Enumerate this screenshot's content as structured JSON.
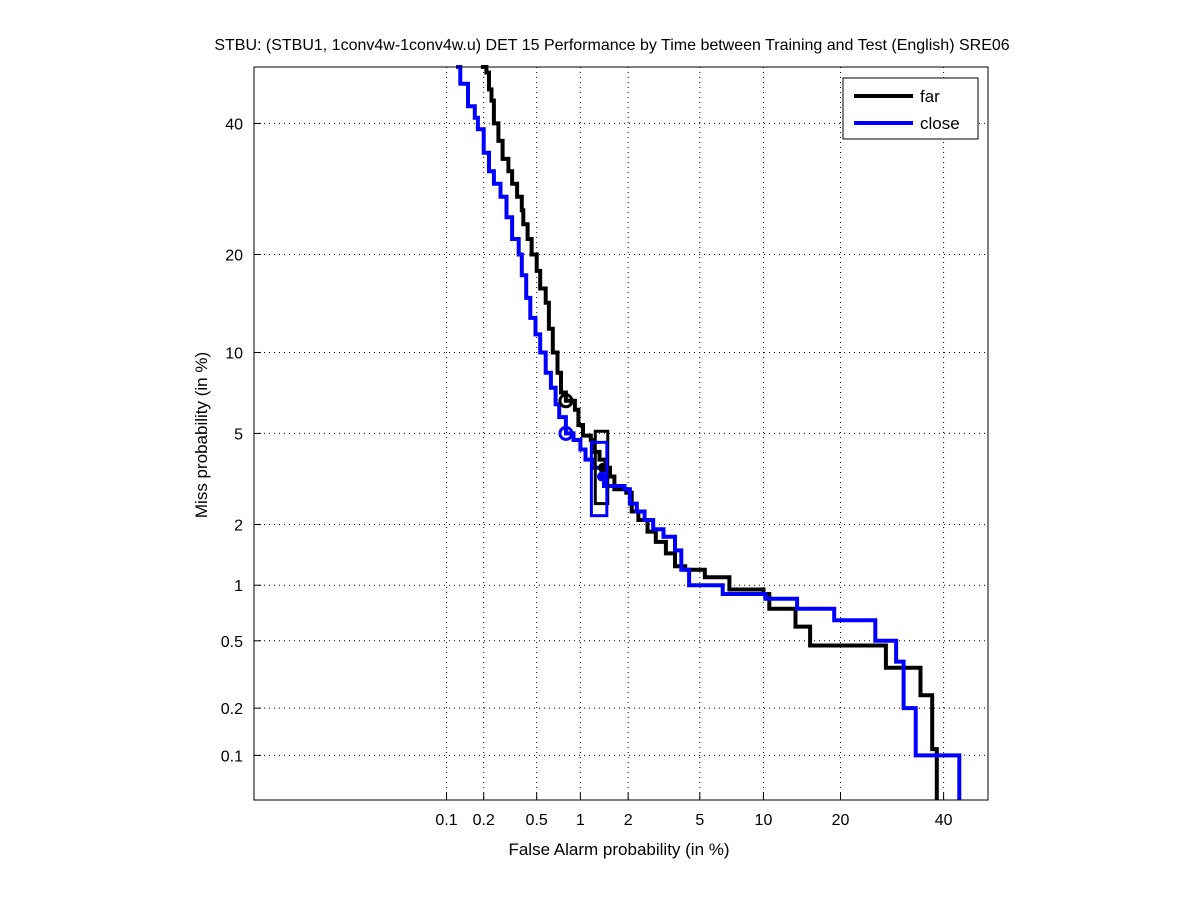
{
  "chart_data": {
    "type": "line",
    "subtype": "DET curve (normal-deviate scale)",
    "title": "STBU: (STBU1, 1conv4w-1conv4w.u) DET 15 Performance by Time between Training and Test (English) SRE06",
    "xlabel": "False Alarm probability (in %)",
    "ylabel": "Miss probability (in %)",
    "x_ticks": [
      0.1,
      0.2,
      0.5,
      1,
      2,
      5,
      10,
      20,
      40
    ],
    "x_tick_labels": [
      "0.1",
      "0.2",
      "0.5",
      "1",
      "2",
      "5",
      "10",
      "20",
      "40"
    ],
    "y_ticks": [
      0.1,
      0.2,
      0.5,
      1,
      2,
      5,
      10,
      20,
      40
    ],
    "y_tick_labels": [
      "0.1",
      "0.2",
      "0.5",
      "1",
      "2",
      "5",
      "10",
      "20",
      "40"
    ],
    "xlim": [
      0.0014,
      50
    ],
    "ylim": [
      0.05,
      50
    ],
    "grid": true,
    "legend_position": "top-right",
    "series": [
      {
        "name": "far",
        "color": "#000000",
        "points": [
          [
            0.19,
            50
          ],
          [
            0.21,
            49
          ],
          [
            0.22,
            46
          ],
          [
            0.23,
            44
          ],
          [
            0.24,
            40
          ],
          [
            0.26,
            37
          ],
          [
            0.28,
            34
          ],
          [
            0.31,
            32
          ],
          [
            0.33,
            30
          ],
          [
            0.36,
            28
          ],
          [
            0.39,
            26
          ],
          [
            0.4,
            24
          ],
          [
            0.43,
            22
          ],
          [
            0.46,
            20
          ],
          [
            0.5,
            18
          ],
          [
            0.53,
            16
          ],
          [
            0.58,
            14.5
          ],
          [
            0.61,
            12
          ],
          [
            0.65,
            10
          ],
          [
            0.7,
            8.5
          ],
          [
            0.74,
            7.2
          ],
          [
            0.8,
            6.7
          ],
          [
            0.92,
            6.2
          ],
          [
            0.97,
            5.4
          ],
          [
            1.04,
            4.9
          ],
          [
            1.17,
            4.7
          ],
          [
            1.2,
            4.2
          ],
          [
            1.33,
            3.9
          ],
          [
            1.45,
            3.6
          ],
          [
            1.55,
            3.3
          ],
          [
            1.65,
            2.9
          ],
          [
            1.95,
            2.8
          ],
          [
            2.1,
            2.3
          ],
          [
            2.3,
            2.1
          ],
          [
            2.6,
            1.85
          ],
          [
            2.9,
            1.65
          ],
          [
            3.3,
            1.45
          ],
          [
            3.7,
            1.25
          ],
          [
            4.2,
            1.2
          ],
          [
            5.3,
            1.1
          ],
          [
            7.0,
            0.95
          ],
          [
            10.0,
            0.9
          ],
          [
            10.6,
            0.75
          ],
          [
            13.6,
            0.6
          ],
          [
            15.5,
            0.47
          ],
          [
            28.0,
            0.35
          ],
          [
            35.0,
            0.24
          ],
          [
            37.5,
            0.11
          ],
          [
            38.5,
            0.05
          ]
        ]
      },
      {
        "name": "close",
        "color": "#0000ff",
        "points": [
          [
            0.12,
            50
          ],
          [
            0.13,
            47
          ],
          [
            0.15,
            43
          ],
          [
            0.17,
            41
          ],
          [
            0.18,
            39
          ],
          [
            0.2,
            35
          ],
          [
            0.22,
            32
          ],
          [
            0.24,
            30
          ],
          [
            0.27,
            28
          ],
          [
            0.3,
            25
          ],
          [
            0.33,
            22
          ],
          [
            0.37,
            20
          ],
          [
            0.39,
            17.5
          ],
          [
            0.42,
            15
          ],
          [
            0.45,
            13
          ],
          [
            0.49,
            11.5
          ],
          [
            0.53,
            10
          ],
          [
            0.58,
            8.5
          ],
          [
            0.63,
            7.5
          ],
          [
            0.68,
            6.5
          ],
          [
            0.72,
            5.8
          ],
          [
            0.8,
            5.0
          ],
          [
            0.9,
            4.7
          ],
          [
            1.0,
            4.3
          ],
          [
            1.08,
            3.9
          ],
          [
            1.2,
            3.6
          ],
          [
            1.37,
            3.3
          ],
          [
            1.42,
            3.0
          ],
          [
            1.9,
            2.9
          ],
          [
            2.05,
            2.5
          ],
          [
            2.25,
            2.3
          ],
          [
            2.5,
            2.1
          ],
          [
            2.8,
            1.9
          ],
          [
            3.2,
            1.75
          ],
          [
            3.7,
            1.5
          ],
          [
            4.0,
            1.2
          ],
          [
            4.4,
            1.0
          ],
          [
            6.5,
            0.9
          ],
          [
            10.2,
            0.85
          ],
          [
            13.8,
            0.75
          ],
          [
            19.0,
            0.65
          ],
          [
            26.0,
            0.5
          ],
          [
            30.0,
            0.38
          ],
          [
            31.5,
            0.2
          ],
          [
            34.0,
            0.1
          ],
          [
            43.0,
            0.1
          ],
          [
            43.5,
            0.05
          ]
        ]
      }
    ],
    "markers": [
      {
        "series": "far",
        "type": "circle",
        "label": "min DCF point",
        "fa": 0.8,
        "miss": 6.7
      },
      {
        "series": "close",
        "type": "circle",
        "label": "min DCF point",
        "fa": 0.8,
        "miss": 5.0
      },
      {
        "series": "far",
        "type": "confidence-box",
        "fa_range": [
          1.25,
          1.5
        ],
        "miss_range": [
          2.5,
          5.1
        ],
        "center": [
          1.4,
          3.6
        ]
      },
      {
        "series": "close",
        "type": "confidence-box",
        "fa_range": [
          1.18,
          1.48
        ],
        "miss_range": [
          2.2,
          4.6
        ],
        "center": [
          1.38,
          3.3
        ]
      }
    ],
    "legend": [
      {
        "label": "far",
        "color": "#000000"
      },
      {
        "label": "close",
        "color": "#0000ff"
      }
    ]
  }
}
